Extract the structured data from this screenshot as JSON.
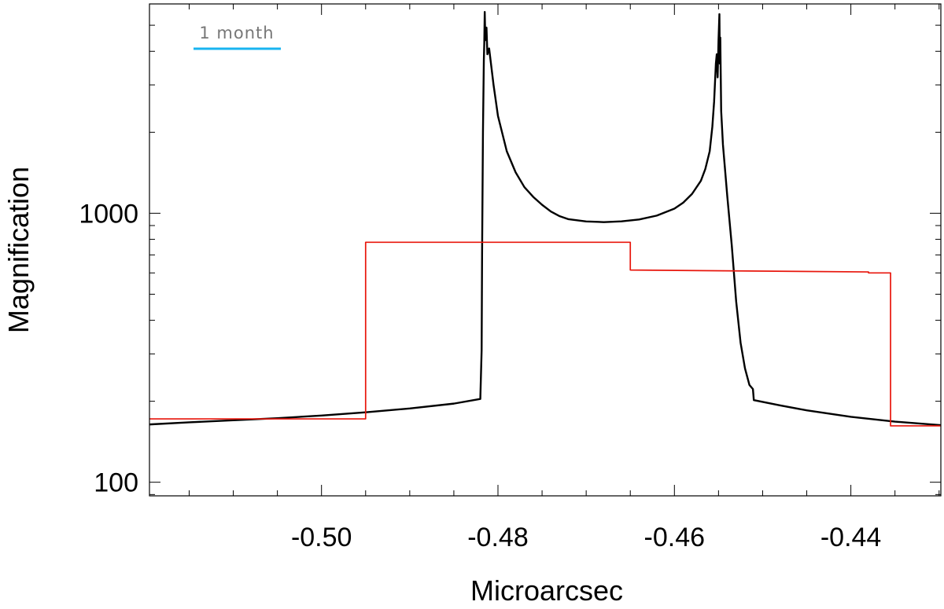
{
  "chart_data": {
    "type": "line",
    "xlabel": "Microarcsec",
    "ylabel": "Magnification",
    "xlim": [
      -0.5195,
      -0.4298
    ],
    "ylim": [
      89,
      6000
    ],
    "yscale": "log",
    "x_ticks": [
      {
        "value": -0.5,
        "label": "-0.50"
      },
      {
        "value": -0.48,
        "label": "-0.48"
      },
      {
        "value": -0.46,
        "label": "-0.46"
      },
      {
        "value": -0.44,
        "label": "-0.44"
      }
    ],
    "y_ticks": [
      {
        "value": 100,
        "label": "100"
      },
      {
        "value": 1000,
        "label": "1000"
      }
    ],
    "scale_bar_label": "1 month",
    "colors": {
      "series_black": "#000000",
      "series_red": "#e8160c",
      "scale_bar": "#19b4f0",
      "scale_text": "#777777",
      "axis": "#000000"
    },
    "series": [
      {
        "color": "#000000",
        "points": [
          [
            -0.5195,
            164
          ],
          [
            -0.515,
            167
          ],
          [
            -0.51,
            170
          ],
          [
            -0.505,
            173
          ],
          [
            -0.5,
            177
          ],
          [
            -0.495,
            182
          ],
          [
            -0.49,
            188
          ],
          [
            -0.485,
            196
          ],
          [
            -0.482,
            204
          ],
          [
            -0.48185,
            310
          ],
          [
            -0.4818,
            700
          ],
          [
            -0.4817,
            2000
          ],
          [
            -0.4816,
            3700
          ],
          [
            -0.48155,
            4300
          ],
          [
            -0.4815,
            5600
          ],
          [
            -0.48145,
            4700
          ],
          [
            -0.4814,
            4400
          ],
          [
            -0.4813,
            4900
          ],
          [
            -0.4812,
            3900
          ],
          [
            -0.481,
            4100
          ],
          [
            -0.4805,
            3000
          ],
          [
            -0.48,
            2300
          ],
          [
            -0.479,
            1700
          ],
          [
            -0.478,
            1420
          ],
          [
            -0.477,
            1250
          ],
          [
            -0.476,
            1150
          ],
          [
            -0.475,
            1075
          ],
          [
            -0.474,
            1015
          ],
          [
            -0.473,
            975
          ],
          [
            -0.472,
            950
          ],
          [
            -0.47,
            932
          ],
          [
            -0.468,
            927
          ],
          [
            -0.466,
            933
          ],
          [
            -0.464,
            948
          ],
          [
            -0.462,
            980
          ],
          [
            -0.46,
            1040
          ],
          [
            -0.459,
            1095
          ],
          [
            -0.458,
            1180
          ],
          [
            -0.457,
            1320
          ],
          [
            -0.4565,
            1460
          ],
          [
            -0.456,
            1700
          ],
          [
            -0.4557,
            2100
          ],
          [
            -0.4555,
            2600
          ],
          [
            -0.4553,
            3600
          ],
          [
            -0.4552,
            3900
          ],
          [
            -0.4551,
            3200
          ],
          [
            -0.455,
            4400
          ],
          [
            -0.4549,
            5500
          ],
          [
            -0.45485,
            3600
          ],
          [
            -0.4548,
            4500
          ],
          [
            -0.4547,
            2400
          ],
          [
            -0.4545,
            1800
          ],
          [
            -0.454,
            1150
          ],
          [
            -0.4535,
            760
          ],
          [
            -0.453,
            470
          ],
          [
            -0.4525,
            330
          ],
          [
            -0.452,
            265
          ],
          [
            -0.4515,
            230
          ],
          [
            -0.4511,
            222
          ],
          [
            -0.451,
            202
          ],
          [
            -0.448,
            193
          ],
          [
            -0.445,
            185
          ],
          [
            -0.44,
            175
          ],
          [
            -0.435,
            168
          ],
          [
            -0.4298,
            163
          ]
        ]
      },
      {
        "color": "#e8160c",
        "step": true,
        "points": [
          [
            -0.5195,
            172
          ],
          [
            -0.495,
            172
          ],
          [
            -0.495,
            780
          ],
          [
            -0.465,
            780
          ],
          [
            -0.465,
            615
          ],
          [
            -0.438,
            605
          ],
          [
            -0.438,
            600
          ],
          [
            -0.4355,
            600
          ],
          [
            -0.4355,
            162
          ],
          [
            -0.4298,
            162
          ]
        ]
      }
    ]
  }
}
